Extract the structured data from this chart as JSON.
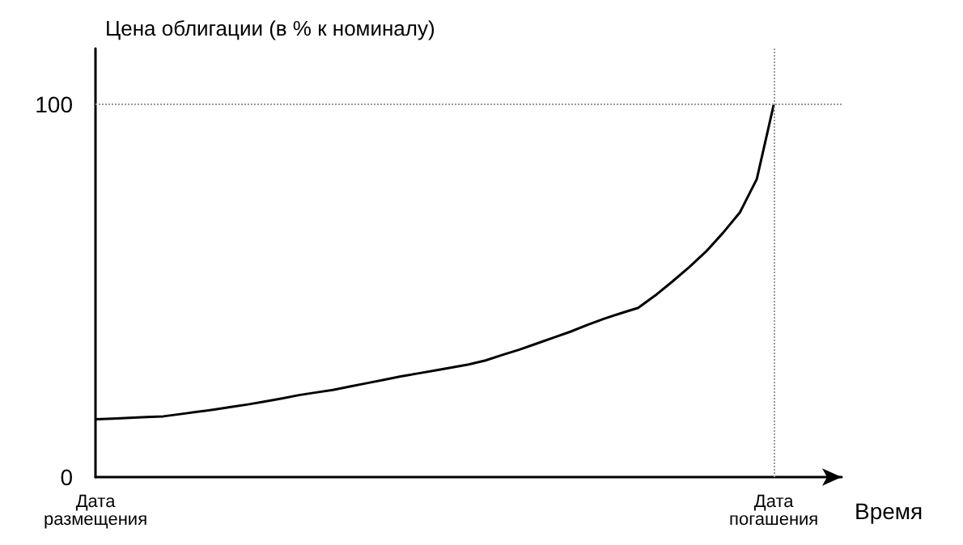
{
  "chart_data": {
    "type": "line",
    "ylabel": "Цена облигации (в % к номиналу)",
    "xlabel": "Время",
    "categories": [
      "Дата размещения",
      null,
      null,
      null,
      null,
      null,
      null,
      null,
      null,
      null,
      null,
      null,
      null,
      null,
      null,
      null,
      null,
      null,
      null,
      null,
      null,
      null,
      null,
      null,
      null,
      null,
      null,
      null,
      null,
      null,
      null,
      null,
      null,
      null,
      null,
      null,
      null,
      null,
      null,
      null,
      "Дата погашения",
      null,
      null,
      null,
      null
    ],
    "series": [
      {
        "color": "#000000",
        "values": [
          15.5,
          15.7,
          15.9,
          16.1,
          16.3,
          16.9,
          17.5,
          18.1,
          18.8,
          19.5,
          20.3,
          21.1,
          22,
          22.7,
          23.4,
          24.3,
          25.2,
          26.1,
          27,
          27.8,
          28.6,
          29.4,
          30.2,
          31.3,
          32.8,
          34.2,
          35.8,
          37.4,
          39,
          40.8,
          42.5,
          44,
          45.4,
          48.7,
          52.4,
          56.3,
          60.5,
          65.5,
          71,
          80,
          100,
          null,
          null,
          null,
          null
        ]
      }
    ],
    "ylim": [
      0,
      115
    ],
    "yticks": [
      0,
      100
    ],
    "ref_lines": [
      {
        "axis": "y",
        "value": 100,
        "color": "#999999",
        "line_style": "dotted"
      },
      {
        "axis": "x",
        "value": "Дата погашения",
        "color": "#999999",
        "line_style": "dotted"
      }
    ],
    "grid": false,
    "marker": "none",
    "line_style": "solid"
  }
}
